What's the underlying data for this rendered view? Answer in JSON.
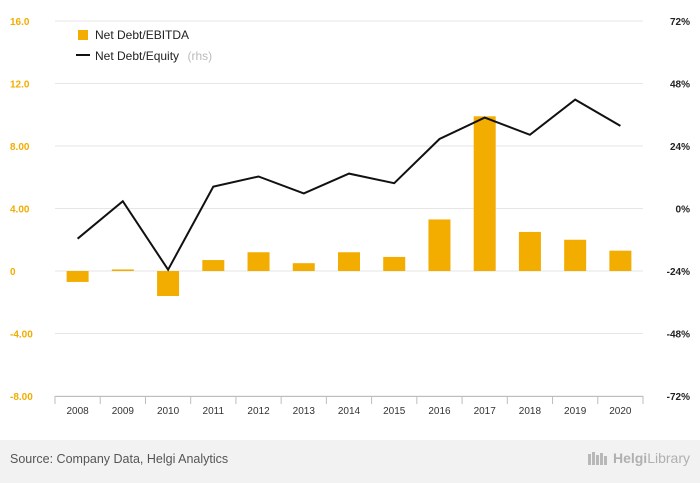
{
  "chart_data": {
    "type": "bar",
    "categories": [
      "2008",
      "2009",
      "2010",
      "2011",
      "2012",
      "2013",
      "2014",
      "2015",
      "2016",
      "2017",
      "2018",
      "2019",
      "2020"
    ],
    "series": [
      {
        "name": "Net Debt/EBITDA",
        "type": "bar",
        "axis": "left",
        "color": "#f2ad00",
        "values": [
          -0.7,
          0.1,
          -1.6,
          0.7,
          1.2,
          0.5,
          1.2,
          0.9,
          3.3,
          9.9,
          2.5,
          2.0,
          1.3
        ]
      },
      {
        "name": "Net Debt/Equity",
        "type": "line",
        "axis": "right",
        "color": "#111111",
        "values": [
          -11.6,
          2.8,
          -23.5,
          8.4,
          12.3,
          5.8,
          13.4,
          9.7,
          26.7,
          34.9,
          28.3,
          41.8,
          31.7
        ]
      }
    ],
    "y_left": {
      "ylim": [
        -8,
        16
      ],
      "ticks": [
        16,
        12,
        8,
        4,
        0,
        -4,
        -8
      ],
      "tick_labels": [
        "16.0",
        "12.0",
        "8.00",
        "4.00",
        "0",
        "-4.00",
        "-8.00"
      ]
    },
    "y_right": {
      "ylim": [
        -72,
        72
      ],
      "ticks": [
        72,
        48,
        24,
        0,
        -24,
        -48,
        -72
      ],
      "tick_labels": [
        "72%",
        "48%",
        "24%",
        "0%",
        "-24%",
        "-48%",
        "-72%"
      ]
    },
    "grid": true,
    "legend": {
      "placement": "top-left",
      "items": [
        {
          "label": "Net Debt/EBITDA",
          "note": ""
        },
        {
          "label": "Net Debt/Equity",
          "note": "(rhs)"
        }
      ]
    }
  },
  "footer": {
    "source": "Source: Company Data, Helgi Analytics",
    "logo_helgi": "Helgi",
    "logo_library": "Library"
  },
  "colors": {
    "bar": "#f2ad00",
    "line": "#111111",
    "grid": "#e6e6e6",
    "footer_bg": "#f2f2f2"
  }
}
